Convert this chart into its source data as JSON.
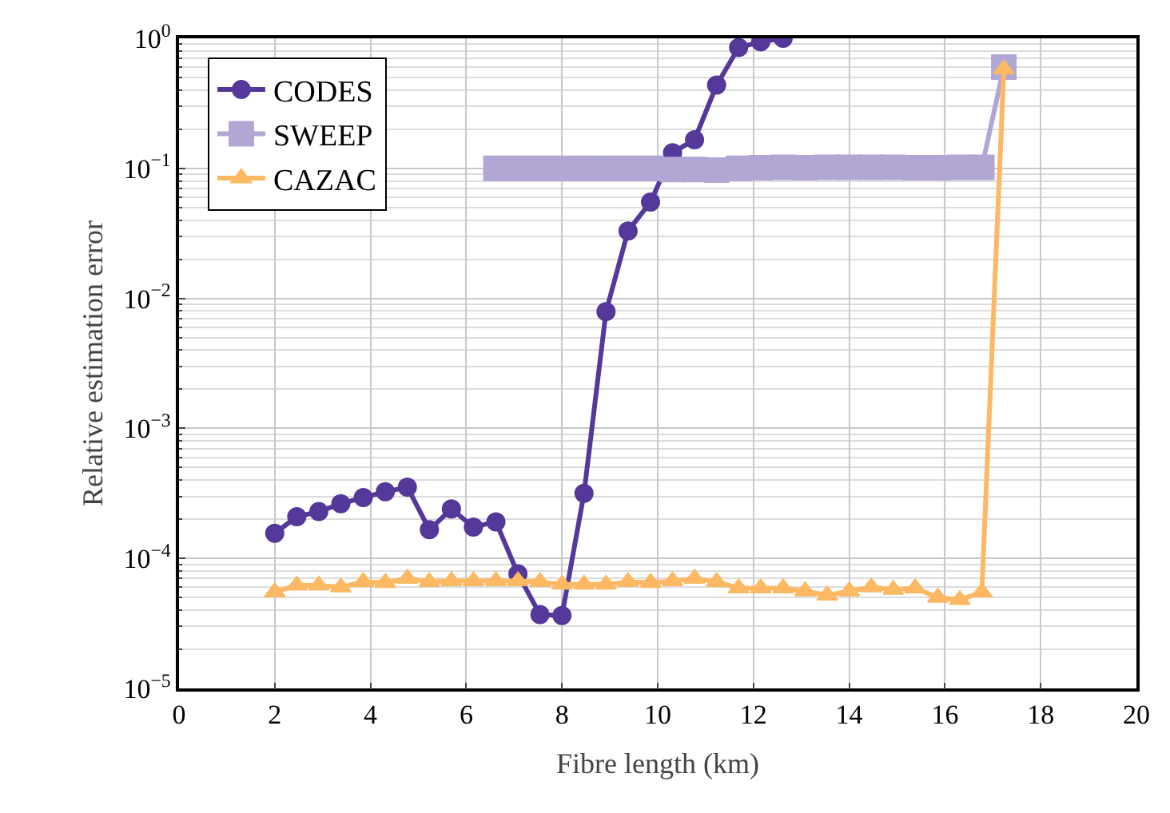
{
  "chart_data": {
    "type": "line",
    "xlabel": "Fibre length (km)",
    "ylabel": "Relative estimation error",
    "x": [
      2.0,
      2.46,
      2.92,
      3.38,
      3.85,
      4.31,
      4.77,
      5.23,
      5.69,
      6.15,
      6.62,
      7.08,
      7.54,
      8.0,
      8.46,
      8.92,
      9.38,
      9.85,
      10.31,
      10.77,
      11.23,
      11.69,
      12.15,
      12.62,
      13.08,
      13.54,
      14.0,
      14.46,
      14.92,
      15.38,
      15.85,
      16.31,
      16.77,
      17.23
    ],
    "series": [
      {
        "name": "CODES",
        "color": "#54389a",
        "marker": "circle",
        "values": [
          0.000156,
          0.000209,
          0.000229,
          0.000263,
          0.000294,
          0.000325,
          0.000353,
          0.000166,
          0.00024,
          0.000174,
          0.000191,
          7.6e-05,
          3.7e-05,
          3.63e-05,
          0.000316,
          0.0079,
          0.033,
          0.055,
          0.132,
          0.166,
          0.437,
          0.85,
          0.94,
          1.0,
          null,
          null,
          null,
          null,
          null,
          null,
          null,
          null,
          null,
          null
        ]
      },
      {
        "name": "SWEEP",
        "color": "#b2a7d4",
        "marker": "square",
        "values": [
          null,
          null,
          null,
          null,
          null,
          null,
          null,
          null,
          null,
          null,
          0.1,
          0.1,
          0.1,
          0.1,
          0.1,
          0.1,
          0.1,
          0.1,
          0.098,
          0.098,
          0.097,
          0.1,
          0.101,
          0.102,
          0.101,
          0.102,
          0.102,
          0.102,
          0.102,
          0.101,
          0.101,
          0.102,
          0.102,
          0.6
        ]
      },
      {
        "name": "CAZAC",
        "color": "#fdb863",
        "marker": "triangle",
        "values": [
          5.5e-05,
          6.2e-05,
          6.2e-05,
          6e-05,
          6.6e-05,
          6.5e-05,
          7e-05,
          6.6e-05,
          6.7e-05,
          6.7e-05,
          6.7e-05,
          6.7e-05,
          6.6e-05,
          6.3e-05,
          6.3e-05,
          6.3e-05,
          6.6e-05,
          6.5e-05,
          6.7e-05,
          7e-05,
          6.6e-05,
          5.9e-05,
          5.9e-05,
          5.9e-05,
          5.6e-05,
          5.2e-05,
          5.6e-05,
          6e-05,
          5.75e-05,
          5.9e-05,
          5e-05,
          4.8e-05,
          5.5e-05,
          0.58
        ]
      }
    ],
    "xlim": [
      0,
      20
    ],
    "xticks": [
      0,
      2,
      4,
      6,
      8,
      10,
      12,
      14,
      16,
      18,
      20
    ],
    "ylim": [
      1e-05,
      1
    ],
    "yticks": [
      {
        "value": 1e-05,
        "label": "10$^{−5}$"
      },
      {
        "value": 0.0001,
        "label": "10$^{−4}$"
      },
      {
        "value": 0.001,
        "label": "10$^{−3}$"
      },
      {
        "value": 0.01,
        "label": "10$^{−2}$"
      },
      {
        "value": 0.1,
        "label": "10$^{−1}$"
      },
      {
        "value": 1,
        "label": "10$^{0}$"
      }
    ],
    "log": "y",
    "grid": true,
    "legend": "top left",
    "line_style": "solid"
  }
}
